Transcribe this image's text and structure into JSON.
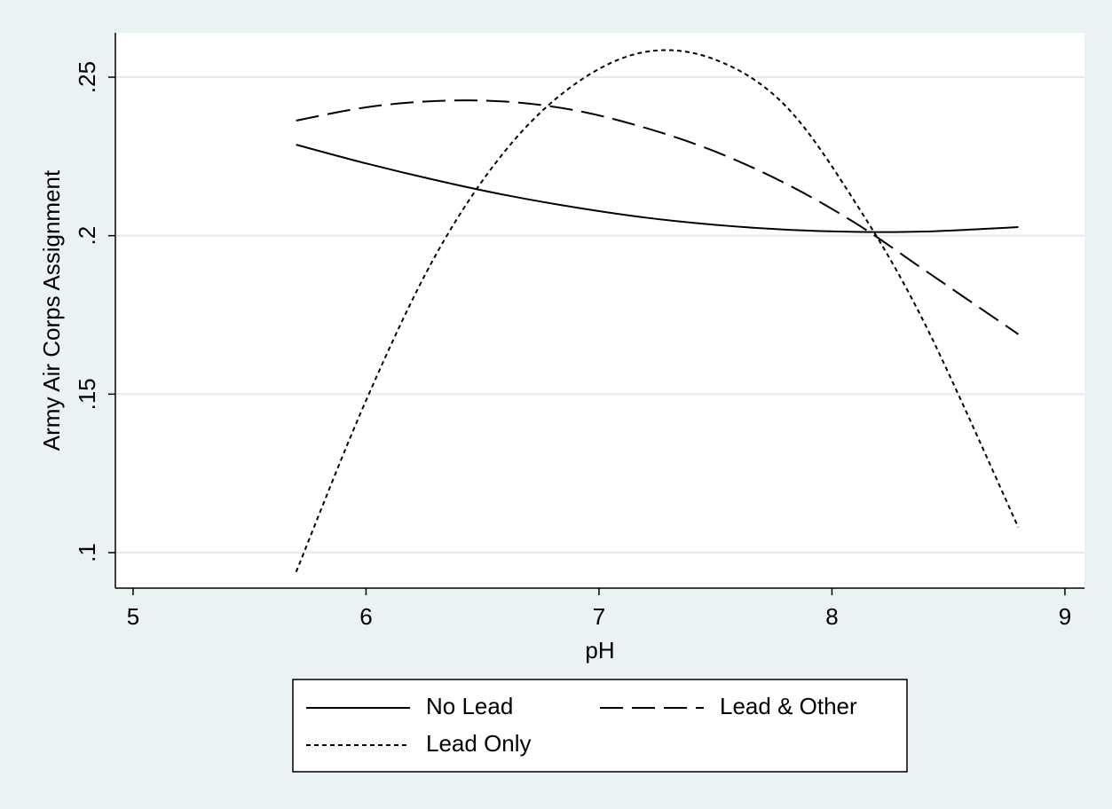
{
  "chart_data": {
    "type": "line",
    "x_label": "pH",
    "y_label": "Army Air Corps Assignment",
    "x": [
      5.7,
      6.0,
      6.3,
      6.6,
      6.9,
      7.2,
      7.5,
      7.8,
      8.1,
      8.4,
      8.8
    ],
    "series": [
      {
        "name": "No Lead",
        "color": "#000000",
        "dash": "solid",
        "values": [
          0.2287,
          0.2228,
          0.2175,
          0.2128,
          0.2089,
          0.2057,
          0.2034,
          0.2019,
          0.2012,
          0.2013,
          0.2027
        ]
      },
      {
        "name": "Lead & Other",
        "color": "#000000",
        "dash": "long",
        "values": [
          0.2363,
          0.2405,
          0.2425,
          0.2423,
          0.2395,
          0.234,
          0.2265,
          0.2165,
          0.204,
          0.189,
          0.1689
        ]
      },
      {
        "name": "Lead Only",
        "color": "#000000",
        "dash": "short",
        "values": [
          0.0939,
          0.148,
          0.194,
          0.227,
          0.248,
          0.258,
          0.2555,
          0.241,
          0.2105,
          0.172,
          0.108
        ]
      }
    ],
    "xlim": [
      4.924,
      9.084
    ],
    "xticks": [
      5,
      6,
      7,
      8,
      9
    ],
    "ylim": [
      0.0888,
      0.264
    ],
    "yticks": [
      {
        "value": 0.1,
        "label": ".1"
      },
      {
        "value": 0.15,
        "label": ".15"
      },
      {
        "value": 0.2,
        "label": ".2"
      },
      {
        "value": 0.25,
        "label": ".25"
      }
    ],
    "grid": true,
    "legend": "bottom"
  }
}
